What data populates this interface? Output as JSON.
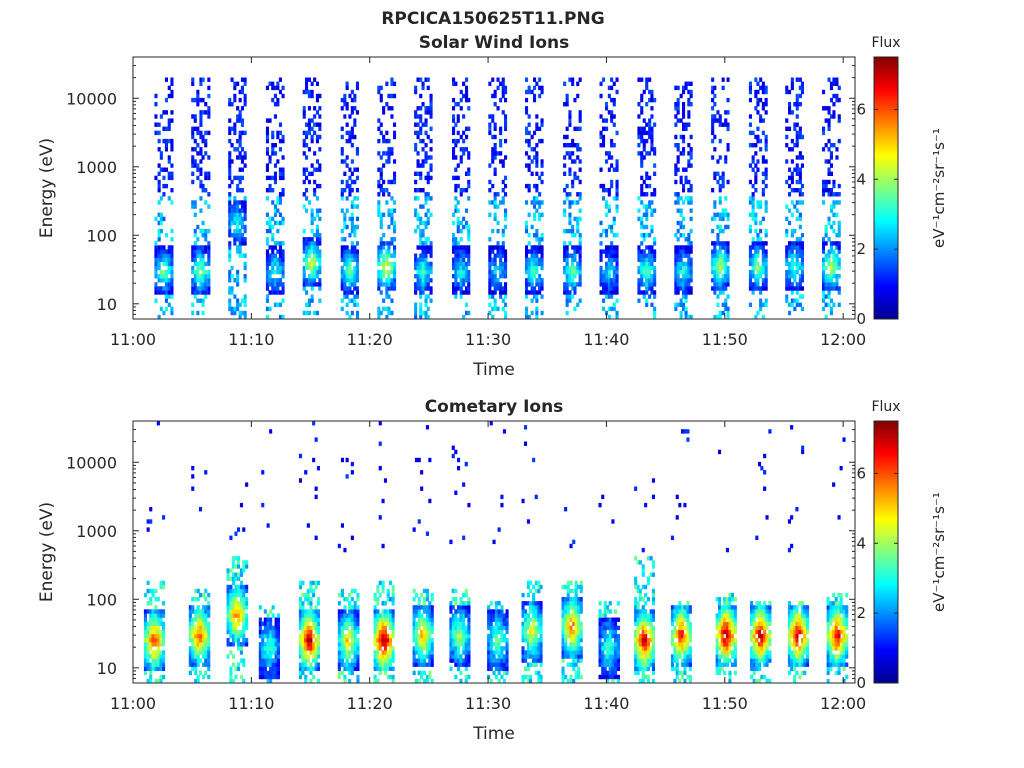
{
  "figure_title": "RPCICA150625T11.PNG",
  "colorbar": {
    "title": "Flux",
    "units": "eV⁻¹cm⁻²sr⁻¹s⁻¹",
    "range": [
      0,
      7.5
    ],
    "ticks": [
      "0",
      "2",
      "4",
      "6"
    ],
    "colormap": "jet",
    "colors": [
      "#00008f",
      "#0000ff",
      "#0080ff",
      "#00ffff",
      "#80ff80",
      "#ffff00",
      "#ff8000",
      "#ff0000",
      "#800000"
    ]
  },
  "chart_data": [
    {
      "type": "heatmap",
      "title": "Solar Wind Ions",
      "xlabel": "Time",
      "ylabel": "Energy (eV)",
      "xlim": [
        "11:00",
        "12:01"
      ],
      "ylim": [
        6,
        40000
      ],
      "yscale": "log",
      "xticks": [
        "11:00",
        "11:10",
        "11:20",
        "11:30",
        "11:40",
        "11:50",
        "12:00"
      ],
      "yticks": [
        "10",
        "100",
        "1000",
        "10000"
      ],
      "clim": [
        0,
        7.5
      ],
      "grid": false,
      "sweep_times_min": [
        2.6,
        5.7,
        8.8,
        12.0,
        15.1,
        18.3,
        21.4,
        24.5,
        27.7,
        30.8,
        33.9,
        37.1,
        40.2,
        43.4,
        46.5,
        49.6,
        52.8,
        55.9,
        59.0
      ],
      "columns": [
        {
          "t": 2.6,
          "peak_energy_eV": 30,
          "peak_flux": 3.5,
          "max_energy_eV": 20000
        },
        {
          "t": 5.7,
          "peak_energy_eV": 30,
          "peak_flux": 3.8,
          "max_energy_eV": 20000
        },
        {
          "t": 8.8,
          "peak_energy_eV": 150,
          "peak_flux": 2.8,
          "max_energy_eV": 20000
        },
        {
          "t": 12.0,
          "peak_energy_eV": 30,
          "peak_flux": 3.0,
          "max_energy_eV": 20000
        },
        {
          "t": 15.1,
          "peak_energy_eV": 40,
          "peak_flux": 4.2,
          "max_energy_eV": 20000
        },
        {
          "t": 18.3,
          "peak_energy_eV": 30,
          "peak_flux": 3.4,
          "max_energy_eV": 20000
        },
        {
          "t": 21.4,
          "peak_energy_eV": 35,
          "peak_flux": 4.6,
          "max_energy_eV": 20000
        },
        {
          "t": 24.5,
          "peak_energy_eV": 30,
          "peak_flux": 3.2,
          "max_energy_eV": 20000
        },
        {
          "t": 27.7,
          "peak_energy_eV": 30,
          "peak_flux": 2.8,
          "max_energy_eV": 20000
        },
        {
          "t": 30.8,
          "peak_energy_eV": 30,
          "peak_flux": 2.6,
          "max_energy_eV": 20000
        },
        {
          "t": 33.9,
          "peak_energy_eV": 30,
          "peak_flux": 3.2,
          "max_energy_eV": 20000
        },
        {
          "t": 37.1,
          "peak_energy_eV": 30,
          "peak_flux": 3.5,
          "max_energy_eV": 20000
        },
        {
          "t": 40.2,
          "peak_energy_eV": 30,
          "peak_flux": 2.6,
          "max_energy_eV": 20000
        },
        {
          "t": 43.4,
          "peak_energy_eV": 30,
          "peak_flux": 3.4,
          "max_energy_eV": 20000
        },
        {
          "t": 46.5,
          "peak_energy_eV": 30,
          "peak_flux": 3.0,
          "max_energy_eV": 20000
        },
        {
          "t": 49.6,
          "peak_energy_eV": 35,
          "peak_flux": 4.0,
          "max_energy_eV": 20000
        },
        {
          "t": 52.8,
          "peak_energy_eV": 35,
          "peak_flux": 3.6,
          "max_energy_eV": 20000
        },
        {
          "t": 55.9,
          "peak_energy_eV": 35,
          "peak_flux": 3.3,
          "max_energy_eV": 20000
        },
        {
          "t": 59.0,
          "peak_energy_eV": 35,
          "peak_flux": 4.2,
          "max_energy_eV": 20000
        }
      ]
    },
    {
      "type": "heatmap",
      "title": "Cometary Ions",
      "xlabel": "Time",
      "ylabel": "Energy (eV)",
      "xlim": [
        "11:00",
        "12:01"
      ],
      "ylim": [
        6,
        40000
      ],
      "yscale": "log",
      "xticks": [
        "11:00",
        "11:10",
        "11:20",
        "11:30",
        "11:40",
        "11:50",
        "12:00"
      ],
      "yticks": [
        "10",
        "100",
        "1000",
        "10000"
      ],
      "clim": [
        0,
        7.5
      ],
      "grid": false,
      "sweep_times_min": [
        1.8,
        5.6,
        8.8,
        11.5,
        14.9,
        18.2,
        21.2,
        24.5,
        27.6,
        30.8,
        33.7,
        37.1,
        40.2,
        43.2,
        46.3,
        50.1,
        53.0,
        56.2,
        59.5
      ],
      "columns": [
        {
          "t": 1.8,
          "peak_energy_eV": 25,
          "peak_flux": 6.0,
          "max_energy_eV": 200
        },
        {
          "t": 5.6,
          "peak_energy_eV": 30,
          "peak_flux": 5.8,
          "max_energy_eV": 150
        },
        {
          "t": 8.8,
          "peak_energy_eV": 60,
          "peak_flux": 5.5,
          "max_energy_eV": 450
        },
        {
          "t": 11.5,
          "peak_energy_eV": 20,
          "peak_flux": 3.2,
          "max_energy_eV": 80
        },
        {
          "t": 14.9,
          "peak_energy_eV": 25,
          "peak_flux": 6.8,
          "max_energy_eV": 200
        },
        {
          "t": 18.2,
          "peak_energy_eV": 25,
          "peak_flux": 4.8,
          "max_energy_eV": 150
        },
        {
          "t": 21.2,
          "peak_energy_eV": 25,
          "peak_flux": 7.2,
          "max_energy_eV": 200
        },
        {
          "t": 24.5,
          "peak_energy_eV": 30,
          "peak_flux": 5.0,
          "max_energy_eV": 150
        },
        {
          "t": 27.6,
          "peak_energy_eV": 30,
          "peak_flux": 4.0,
          "max_energy_eV": 150
        },
        {
          "t": 30.8,
          "peak_energy_eV": 25,
          "peak_flux": 3.6,
          "max_energy_eV": 100
        },
        {
          "t": 33.7,
          "peak_energy_eV": 35,
          "peak_flux": 4.6,
          "max_energy_eV": 200
        },
        {
          "t": 37.1,
          "peak_energy_eV": 40,
          "peak_flux": 5.6,
          "max_energy_eV": 200
        },
        {
          "t": 40.2,
          "peak_energy_eV": 20,
          "peak_flux": 3.2,
          "max_energy_eV": 100
        },
        {
          "t": 43.2,
          "peak_energy_eV": 25,
          "peak_flux": 6.6,
          "max_energy_eV": 400
        },
        {
          "t": 46.3,
          "peak_energy_eV": 30,
          "peak_flux": 6.2,
          "max_energy_eV": 100
        },
        {
          "t": 50.1,
          "peak_energy_eV": 30,
          "peak_flux": 7.0,
          "max_energy_eV": 120
        },
        {
          "t": 53.0,
          "peak_energy_eV": 30,
          "peak_flux": 6.8,
          "max_energy_eV": 100
        },
        {
          "t": 56.2,
          "peak_energy_eV": 30,
          "peak_flux": 6.8,
          "max_energy_eV": 100
        },
        {
          "t": 59.5,
          "peak_energy_eV": 30,
          "peak_flux": 6.6,
          "max_energy_eV": 120
        }
      ]
    }
  ]
}
